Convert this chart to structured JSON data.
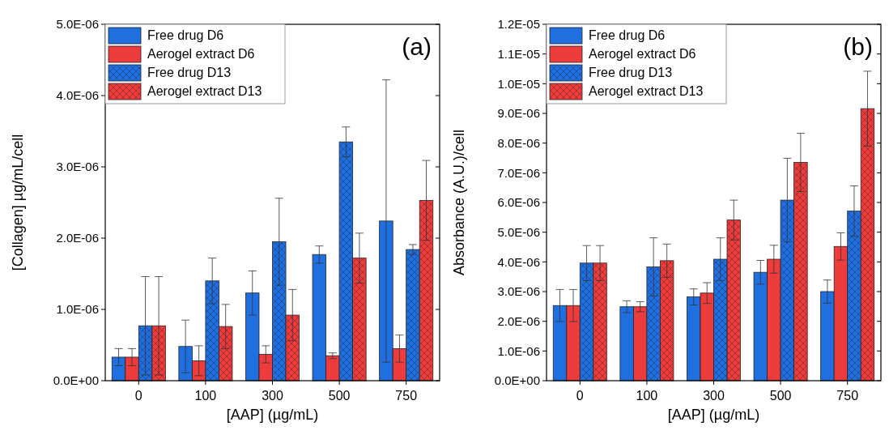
{
  "chart_data": [
    {
      "type": "bar",
      "title": null,
      "xlabel": "[AAP] (µg/mL)",
      "ylabel": "[Collagen] µg/mL/cell",
      "categories": [
        "0",
        "100",
        "300",
        "500",
        "750"
      ],
      "annotations": [
        "(a)"
      ],
      "legend": "top left",
      "ylim": [
        0,
        5e-06
      ],
      "yticks": [
        {
          "value": 0,
          "label": "0.0E+00"
        },
        {
          "value": 1e-06,
          "label": "1.0E-06"
        },
        {
          "value": 2e-06,
          "label": "2.0E-06"
        },
        {
          "value": 3e-06,
          "label": "3.0E-06"
        },
        {
          "value": 4e-06,
          "label": "4.0E-06"
        },
        {
          "value": 5e-06,
          "label": "5.0E-06"
        }
      ],
      "series": [
        {
          "name": "Free drug D6",
          "color": "#1f6fe0",
          "values": [
            3.3e-07,
            4.8e-07,
            1.23e-06,
            1.77e-06,
            2.24e-06
          ],
          "errors": [
            1.2e-07,
            3.7e-07,
            3.1e-07,
            1.2e-07,
            1.98e-06
          ]
        },
        {
          "name": "Aerogel extract D6",
          "color": "#ee3b3b",
          "values": [
            3.3e-07,
            2.8e-07,
            3.7e-07,
            3.5e-07,
            4.5e-07
          ],
          "errors": [
            1.2e-07,
            2.1e-07,
            1.2e-07,
            4e-08,
            1.9e-07
          ]
        },
        {
          "name": "Free drug D13",
          "color": "#1f6fe0",
          "values": [
            7.7e-07,
            1.4e-06,
            1.95e-06,
            3.35e-06,
            1.84e-06
          ],
          "errors": [
            6.9e-07,
            3.2e-07,
            6.1e-07,
            2.1e-07,
            7e-08
          ]
        },
        {
          "name": "Aerogel extract D13",
          "color": "#ee3b3b",
          "values": [
            7.7e-07,
            7.6e-07,
            9.2e-07,
            1.72e-06,
            2.53e-06
          ],
          "errors": [
            6.9e-07,
            3.1e-07,
            3.6e-07,
            3.5e-07,
            5.6e-07
          ]
        }
      ]
    },
    {
      "type": "bar",
      "title": null,
      "xlabel": "[AAP] (µg/mL)",
      "ylabel": "Absorbance (A.U.)/cell",
      "categories": [
        "0",
        "100",
        "300",
        "500",
        "750"
      ],
      "annotations": [
        "(b)"
      ],
      "legend": "top left",
      "ylim": [
        0,
        1.2e-05
      ],
      "yticks": [
        {
          "value": 0,
          "label": "0.0E+00"
        },
        {
          "value": 1e-06,
          "label": "1.0E-06"
        },
        {
          "value": 2e-06,
          "label": "2.0E-06"
        },
        {
          "value": 3e-06,
          "label": "3.0E-06"
        },
        {
          "value": 4e-06,
          "label": "4.0E-06"
        },
        {
          "value": 5e-06,
          "label": "5.0E-06"
        },
        {
          "value": 6e-06,
          "label": "6.0E-06"
        },
        {
          "value": 7e-06,
          "label": "7.0E-06"
        },
        {
          "value": 8e-06,
          "label": "8.0E-06"
        },
        {
          "value": 9e-06,
          "label": "9.0E-06"
        },
        {
          "value": 1e-05,
          "label": "1.0E-05"
        },
        {
          "value": 1.1e-05,
          "label": "1.1E-05"
        },
        {
          "value": 1.2e-05,
          "label": "1.2E-05"
        }
      ],
      "series": [
        {
          "name": "Free drug D6",
          "color": "#1f6fe0",
          "values": [
            2.53e-06,
            2.49e-06,
            2.82e-06,
            3.65e-06,
            3e-06
          ],
          "errors": [
            5.4e-07,
            2e-07,
            2.7e-07,
            4e-07,
            3.9e-07
          ]
        },
        {
          "name": "Aerogel extract D6",
          "color": "#ee3b3b",
          "values": [
            2.53e-06,
            2.49e-06,
            2.95e-06,
            4.09e-06,
            4.52e-06
          ],
          "errors": [
            5.4e-07,
            1.7e-07,
            3.5e-07,
            4.7e-07,
            4.6e-07
          ]
        },
        {
          "name": "Free drug D13",
          "color": "#1f6fe0",
          "values": [
            3.96e-06,
            3.83e-06,
            4.09e-06,
            6.08e-06,
            5.71e-06
          ],
          "errors": [
            5.9e-07,
            9.8e-07,
            7.2e-07,
            1.41e-06,
            8.5e-07
          ]
        },
        {
          "name": "Aerogel extract D13",
          "color": "#ee3b3b",
          "values": [
            3.96e-06,
            4.04e-06,
            5.41e-06,
            7.35e-06,
            9.16e-06
          ],
          "errors": [
            5.9e-07,
            5.6e-07,
            6.7e-07,
            9.8e-07,
            1.26e-06
          ]
        }
      ]
    }
  ]
}
